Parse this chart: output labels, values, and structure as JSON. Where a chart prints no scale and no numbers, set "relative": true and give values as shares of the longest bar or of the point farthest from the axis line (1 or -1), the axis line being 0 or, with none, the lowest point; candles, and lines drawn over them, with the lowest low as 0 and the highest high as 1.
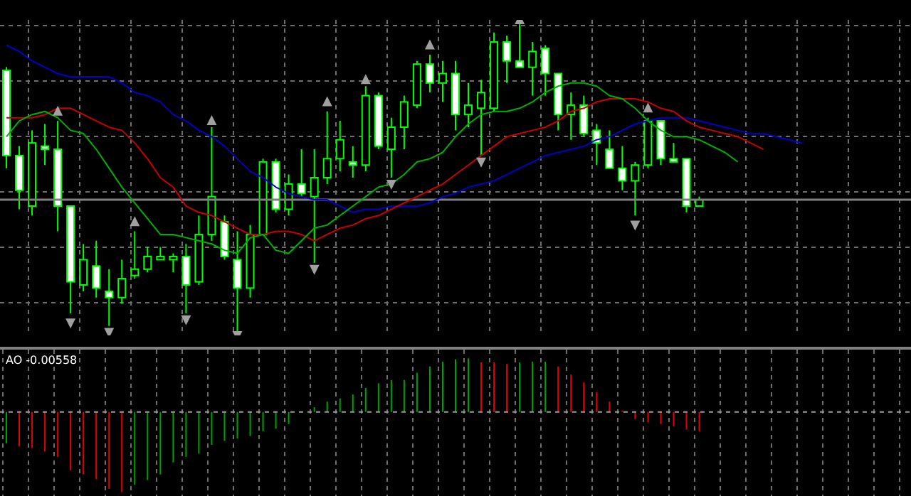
{
  "chart_data": [
    {
      "type": "candlestick",
      "relative": true,
      "grid": true,
      "categories": [
        null,
        null,
        null,
        null,
        null,
        null,
        null,
        null,
        null,
        null,
        null,
        null,
        null,
        null,
        null,
        null,
        null,
        null,
        null,
        null,
        null,
        null,
        null,
        null,
        null,
        null,
        null,
        null,
        null,
        null,
        null,
        null,
        null,
        null,
        null,
        null,
        null,
        null,
        null,
        null,
        null,
        null,
        null,
        null,
        null,
        null,
        null,
        null,
        null,
        null,
        null,
        null,
        null,
        null,
        null,
        null,
        null,
        null,
        null,
        null,
        null,
        null,
        null,
        null,
        null,
        null,
        null,
        null,
        null,
        null,
        null
      ],
      "ohlc": [
        [
          0.84,
          0.85,
          0.53,
          0.57
        ],
        [
          0.57,
          0.6,
          0.4,
          0.46
        ],
        [
          0.41,
          0.65,
          0.38,
          0.61
        ],
        [
          0.6,
          0.67,
          0.54,
          0.59
        ],
        [
          0.59,
          0.68,
          0.33,
          0.41
        ],
        [
          0.41,
          0.41,
          0.07,
          0.17
        ],
        [
          0.16,
          0.29,
          0.14,
          0.24
        ],
        [
          0.22,
          0.3,
          0.12,
          0.15
        ],
        [
          0.14,
          0.21,
          0.03,
          0.12
        ],
        [
          0.12,
          0.24,
          0.1,
          0.18
        ],
        [
          0.19,
          0.33,
          0.18,
          0.21
        ],
        [
          0.21,
          0.28,
          0.2,
          0.25
        ],
        [
          0.24,
          0.28,
          0.24,
          0.25
        ],
        [
          0.24,
          0.26,
          0.2,
          0.25
        ],
        [
          0.25,
          0.29,
          0.07,
          0.16
        ],
        [
          0.17,
          0.38,
          0.16,
          0.32
        ],
        [
          0.32,
          0.66,
          0.3,
          0.44
        ],
        [
          0.36,
          0.38,
          0.24,
          0.25
        ],
        [
          0.24,
          0.33,
          0,
          0.15
        ],
        [
          0.15,
          0.35,
          0.12,
          0.32
        ],
        [
          0.32,
          0.56,
          0.32,
          0.55
        ],
        [
          0.55,
          0.56,
          0.39,
          0.4
        ],
        [
          0.4,
          0.51,
          0.38,
          0.48
        ],
        [
          0.48,
          0.59,
          0.44,
          0.45
        ],
        [
          0.44,
          0.59,
          0.23,
          0.5
        ],
        [
          0.5,
          0.71,
          0.48,
          0.56
        ],
        [
          0.56,
          0.68,
          0.52,
          0.62
        ],
        [
          0.55,
          0.6,
          0.5,
          0.54
        ],
        [
          0.54,
          0.79,
          0.52,
          0.76
        ],
        [
          0.76,
          0.77,
          0.59,
          0.6
        ],
        [
          0.59,
          0.69,
          0.5,
          0.66
        ],
        [
          0.66,
          0.76,
          0.59,
          0.74
        ],
        [
          0.73,
          0.87,
          0.72,
          0.86
        ],
        [
          0.86,
          0.89,
          0.77,
          0.8
        ],
        [
          0.8,
          0.87,
          0.74,
          0.83
        ],
        [
          0.83,
          0.87,
          0.65,
          0.7
        ],
        [
          0.7,
          0.8,
          0.66,
          0.73
        ],
        [
          0.72,
          0.81,
          0.57,
          0.77
        ],
        [
          0.72,
          0.96,
          0.71,
          0.93
        ],
        [
          0.93,
          0.95,
          0.8,
          0.87
        ],
        [
          0.87,
          1,
          0.85,
          0.85
        ],
        [
          0.85,
          0.93,
          0.76,
          0.9
        ],
        [
          0.91,
          0.92,
          0.76,
          0.83
        ],
        [
          0.83,
          0.83,
          0.65,
          0.7
        ],
        [
          0.7,
          0.77,
          0.62,
          0.73
        ],
        [
          0.73,
          0.76,
          0.63,
          0.64
        ],
        [
          0.65,
          0.67,
          0.54,
          0.61
        ],
        [
          0.59,
          0.65,
          0.53,
          0.53
        ],
        [
          0.53,
          0.6,
          0.46,
          0.49
        ],
        [
          0.49,
          0.55,
          0.38,
          0.54
        ],
        [
          0.54,
          0.69,
          0.53,
          0.68
        ],
        [
          0.68,
          0.68,
          0.54,
          0.56
        ],
        [
          0.56,
          0.61,
          0.55,
          0.55
        ],
        [
          0.56,
          0.56,
          0.39,
          0.41
        ],
        [
          0.41,
          0.44,
          0.41,
          0.43
        ],
        null,
        null,
        null,
        null,
        null,
        null,
        null,
        null,
        null,
        null,
        null,
        null,
        null,
        null,
        null,
        null
      ],
      "series": [
        {
          "type": "line",
          "color": "#0000c8",
          "values": [
            0.92,
            0.9,
            0.87,
            0.85,
            0.83,
            0.82,
            0.82,
            0.82,
            0.82,
            0.8,
            0.77,
            0.76,
            0.74,
            0.7,
            0.68,
            0.65,
            0.63,
            0.6,
            0.56,
            0.52,
            0.5,
            0.47,
            0.45,
            0.44,
            0.43,
            0.43,
            0.41,
            0.39,
            0.4,
            0.4,
            0.41,
            0.41,
            0.41,
            0.42,
            0.44,
            0.45,
            0.47,
            0.48,
            0.49,
            0.51,
            0.53,
            0.55,
            0.57,
            0.58,
            0.59,
            0.6,
            0.62,
            0.63,
            0.65,
            0.67,
            0.68,
            0.69,
            0.69,
            0.69,
            0.68,
            0.67,
            0.66,
            0.65,
            0.64,
            0.64,
            0.63,
            0.62,
            0.61,
            null,
            null,
            null,
            null,
            null,
            null,
            null,
            null
          ]
        },
        {
          "type": "line",
          "color": "#c80000",
          "values": [
            0.69,
            0.69,
            0.69,
            0.7,
            0.72,
            0.72,
            0.7,
            0.68,
            0.66,
            0.65,
            0.61,
            0.56,
            0.5,
            0.47,
            0.41,
            0.39,
            0.38,
            0.36,
            0.34,
            0.32,
            0.32,
            0.33,
            0.33,
            0.32,
            0.3,
            0.32,
            0.34,
            0.35,
            0.37,
            0.38,
            0.4,
            0.42,
            0.44,
            0.46,
            0.48,
            0.51,
            0.54,
            0.57,
            0.6,
            0.63,
            0.64,
            0.65,
            0.66,
            0.68,
            0.71,
            0.72,
            0.74,
            0.75,
            0.75,
            0.75,
            0.74,
            0.72,
            0.71,
            0.68,
            0.66,
            0.65,
            0.64,
            0.63,
            0.61,
            0.59,
            null,
            null,
            null,
            null,
            null,
            null,
            null,
            null,
            null,
            null,
            null
          ]
        },
        {
          "type": "line",
          "color": "#00b000",
          "values": [
            0.63,
            0.68,
            0.7,
            0.71,
            0.69,
            0.65,
            0.64,
            0.59,
            0.53,
            0.47,
            0.42,
            0.37,
            0.32,
            0.32,
            0.31,
            0.3,
            0.29,
            0.27,
            0.26,
            0.31,
            0.32,
            0.27,
            0.26,
            0.3,
            0.34,
            0.35,
            0.38,
            0.41,
            0.44,
            0.47,
            0.48,
            0.51,
            0.55,
            0.56,
            0.58,
            0.63,
            0.67,
            0.7,
            0.71,
            0.71,
            0.72,
            0.74,
            0.77,
            0.79,
            0.8,
            0.8,
            0.79,
            0.76,
            0.75,
            0.72,
            0.68,
            0.65,
            0.63,
            0.63,
            0.62,
            0.6,
            0.58,
            0.55,
            null,
            null,
            null,
            null,
            null,
            null,
            null,
            null,
            null,
            null,
            null,
            null,
            null
          ]
        },
        {
          "type": "scatter",
          "color": "#a0a0a0",
          "values": [
            null,
            null,
            null,
            null,
            0.71,
            0.04,
            null,
            null,
            0.01,
            null,
            0.36,
            null,
            null,
            null,
            0.05,
            null,
            0.68,
            null,
            0,
            null,
            null,
            null,
            null,
            null,
            0.21,
            0.74,
            null,
            null,
            0.81,
            null,
            0.48,
            null,
            null,
            0.92,
            null,
            null,
            null,
            0.55,
            null,
            null,
            1,
            null,
            null,
            null,
            null,
            null,
            null,
            null,
            null,
            0.35,
            0.72,
            null,
            null,
            null,
            null,
            null,
            null,
            null,
            null,
            null,
            null,
            null,
            null,
            null,
            null,
            null,
            null,
            null,
            null,
            null,
            null
          ]
        }
      ],
      "ref_lines": [
        {
          "axis": "y",
          "value": 0.43,
          "color": "#808080"
        }
      ]
    },
    {
      "type": "bar",
      "relative": true,
      "grid": true,
      "title": "AO -0.00558",
      "categories": [
        null,
        null,
        null,
        null,
        null,
        null,
        null,
        null,
        null,
        null,
        null,
        null,
        null,
        null,
        null,
        null,
        null,
        null,
        null,
        null,
        null,
        null,
        null,
        null,
        null,
        null,
        null,
        null,
        null,
        null,
        null,
        null,
        null,
        null,
        null,
        null,
        null,
        null,
        null,
        null,
        null,
        null,
        null,
        null,
        null,
        null,
        null,
        null,
        null,
        null,
        null,
        null,
        null,
        null,
        null,
        null,
        null,
        null,
        null,
        null,
        null,
        null,
        null,
        null,
        null,
        null,
        null,
        null,
        null,
        null,
        null
      ],
      "values": [
        -0.39,
        -0.43,
        -0.45,
        -0.49,
        -0.56,
        -0.73,
        -0.78,
        -0.84,
        -0.96,
        -1,
        -0.91,
        -0.85,
        -0.78,
        -0.63,
        -0.56,
        -0.52,
        -0.41,
        -0.36,
        -0.33,
        -0.3,
        -0.24,
        -0.21,
        -0.15,
        null,
        0.06,
        0.13,
        0.17,
        0.22,
        0.3,
        0.36,
        0.4,
        0.4,
        0.49,
        0.57,
        0.63,
        0.66,
        0.67,
        0.62,
        0.62,
        0.6,
        0.62,
        0.63,
        0.63,
        0.57,
        0.47,
        0.37,
        0.25,
        0.13,
        0.02,
        -0.09,
        -0.13,
        -0.15,
        -0.18,
        -0.22,
        -0.24,
        null,
        null,
        null,
        null,
        null,
        null,
        null,
        null,
        null,
        null,
        null,
        null,
        null,
        null,
        null,
        null
      ],
      "ref_lines": [
        {
          "axis": "y",
          "value": 0,
          "color": "#9a9a9a",
          "line_style": "dashed"
        }
      ],
      "colors": [
        "#00a000",
        "#e00000",
        "#e00000",
        "#e00000",
        "#e00000",
        "#e00000",
        "#e00000",
        "#e00000",
        "#e00000",
        "#e00000",
        "#00a000",
        "#00a000",
        "#00a000",
        "#00a000",
        "#00a000",
        "#00a000",
        "#00a000",
        "#00a000",
        "#00a000",
        "#00a000",
        "#00a000",
        "#00a000",
        "#00a000",
        "#00a000",
        "#00a000",
        "#00a000",
        "#00a000",
        "#00a000",
        "#00a000",
        "#00a000",
        "#00a000",
        "#00a000",
        "#00a000",
        "#00a000",
        "#00a000",
        "#00a000",
        "#00a000",
        "#e00000",
        "#e00000",
        "#e00000",
        "#00a000",
        "#00a000",
        "#00a000",
        "#e00000",
        "#e00000",
        "#e00000",
        "#e00000",
        "#e00000",
        "#e00000",
        "#e00000",
        "#e00000",
        "#e00000",
        "#e00000",
        "#e00000",
        "#e00000",
        "#e00000",
        "#e00000",
        "#e00000",
        "#e00000",
        "#e00000",
        "#e00000",
        "#e00000",
        "#e00000",
        "#e00000",
        "#e00000",
        "#e00000",
        "#e00000",
        "#e00000",
        "#e00000",
        "#e00000",
        "#e00000"
      ]
    }
  ]
}
